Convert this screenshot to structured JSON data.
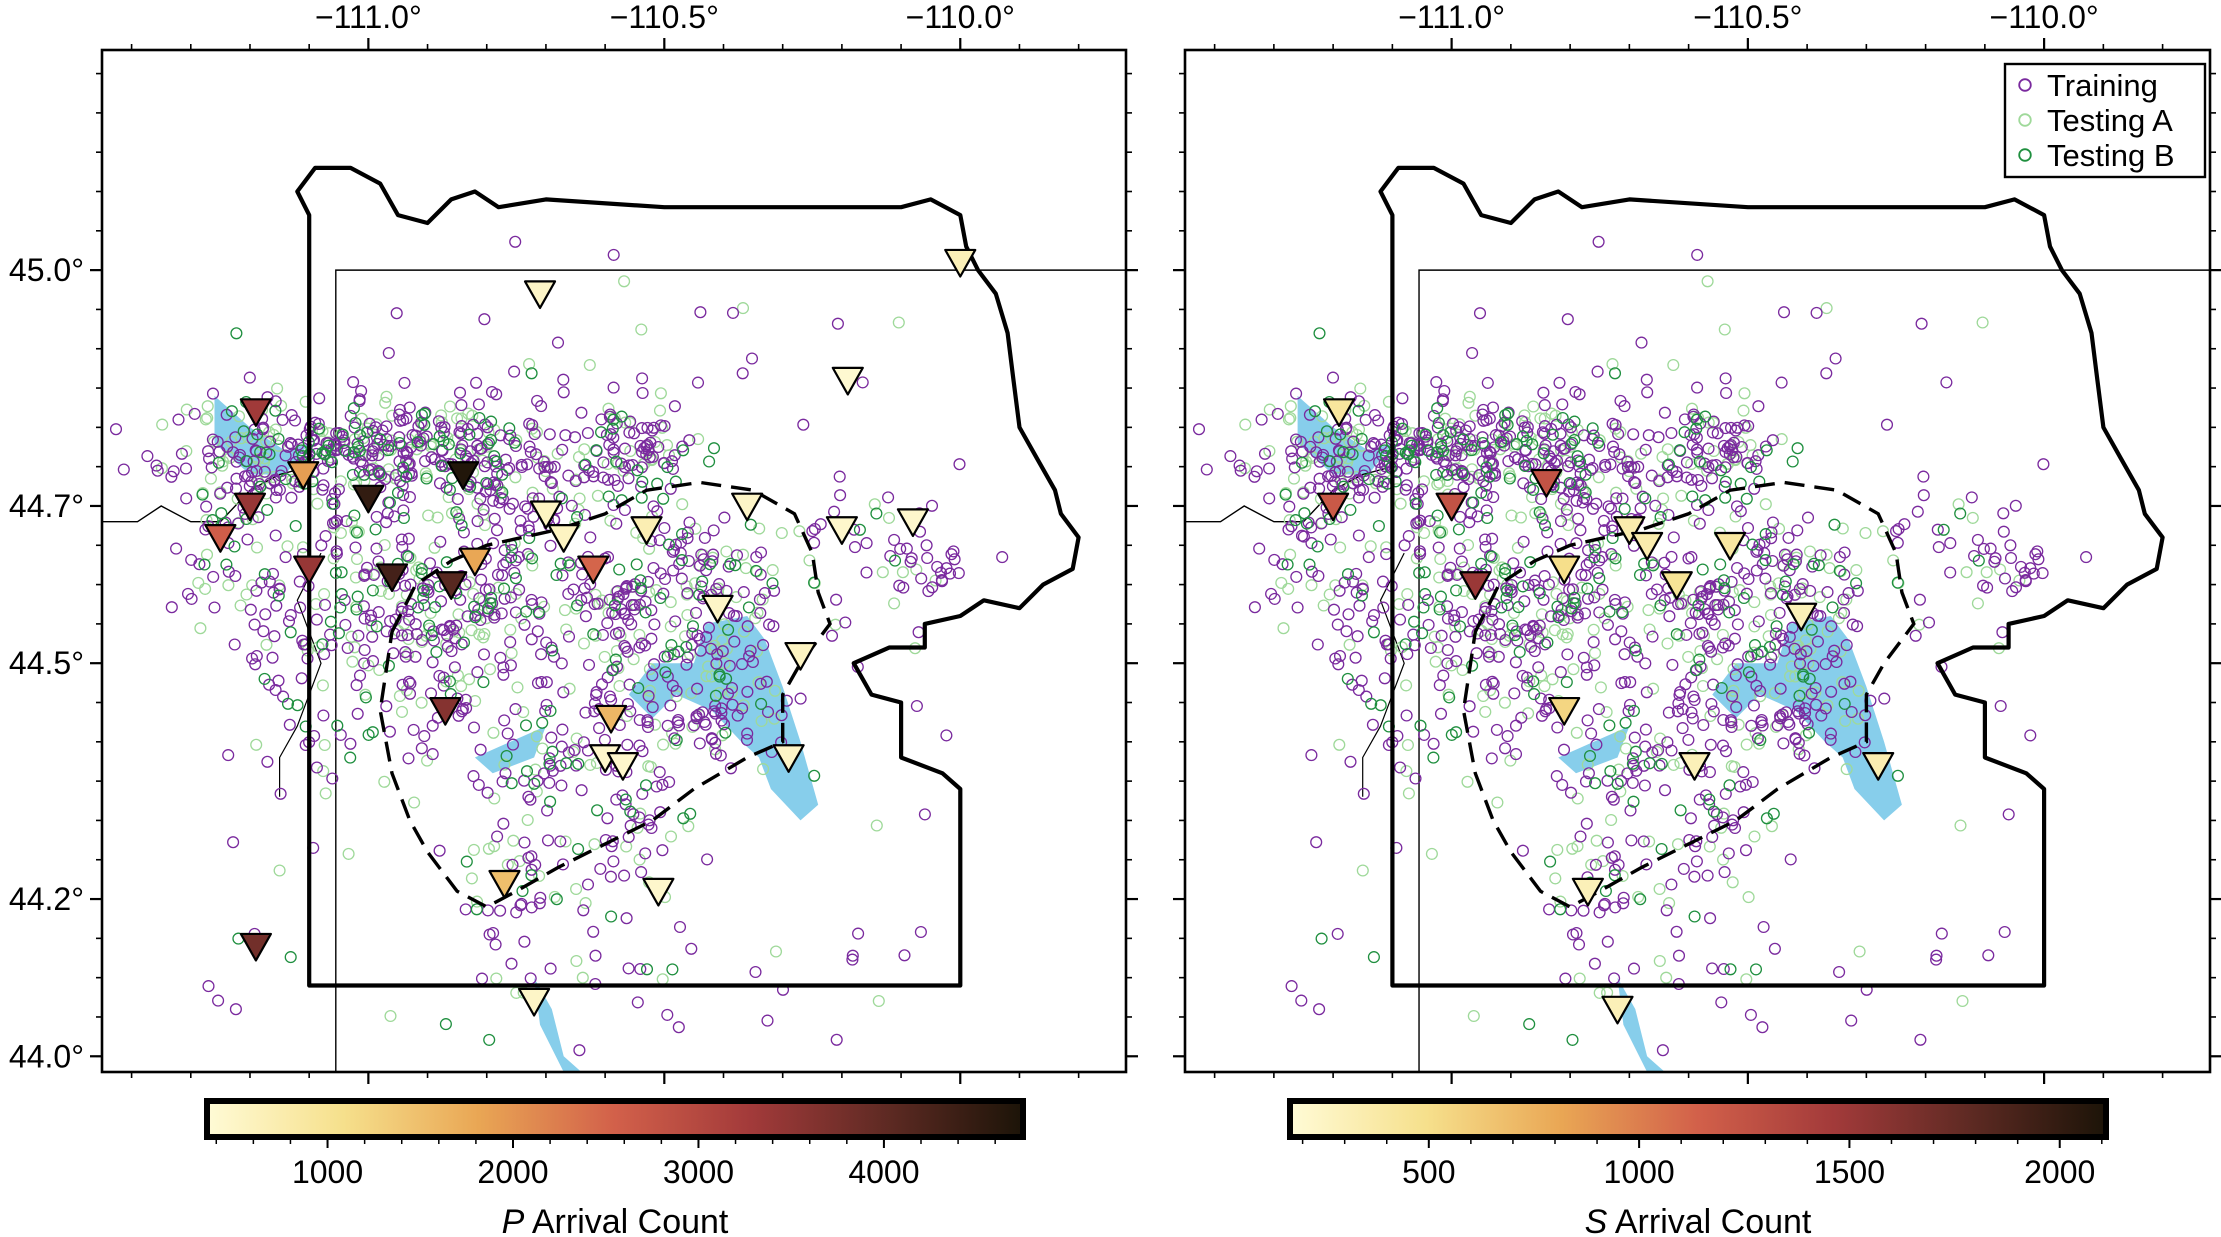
{
  "maps": [
    {
      "id": "p",
      "lon_ticks": [
        "−111.0°",
        "−110.5°",
        "−110.0°"
      ],
      "lat_ticks": [
        "45.0°",
        "44.7°",
        "44.5°",
        "44.2°",
        "44.0°"
      ],
      "colorbar": {
        "tick_labels": [
          "1000",
          "2000",
          "3000",
          "4000"
        ],
        "title_italic": "P",
        "title_rest": " Arrival Count",
        "range": [
          350,
          4750
        ]
      },
      "stations": [
        {
          "lon": -111.19,
          "lat": 44.82,
          "count": 3300
        },
        {
          "lon": -111.11,
          "lat": 44.74,
          "count": 1900
        },
        {
          "lon": -111.2,
          "lat": 44.7,
          "count": 3400
        },
        {
          "lon": -111.25,
          "lat": 44.66,
          "count": 2600
        },
        {
          "lon": -111.0,
          "lat": 44.71,
          "count": 4500
        },
        {
          "lon": -110.84,
          "lat": 44.74,
          "count": 4700
        },
        {
          "lon": -110.96,
          "lat": 44.61,
          "count": 4300
        },
        {
          "lon": -110.86,
          "lat": 44.6,
          "count": 4100
        },
        {
          "lon": -110.82,
          "lat": 44.63,
          "count": 1800
        },
        {
          "lon": -111.1,
          "lat": 44.62,
          "count": 3400
        },
        {
          "lon": -110.62,
          "lat": 44.62,
          "count": 2500
        },
        {
          "lon": -110.87,
          "lat": 44.44,
          "count": 3600
        },
        {
          "lon": -110.71,
          "lat": 44.97,
          "count": 500
        },
        {
          "lon": -110.7,
          "lat": 44.69,
          "count": 550
        },
        {
          "lon": -110.67,
          "lat": 44.66,
          "count": 550
        },
        {
          "lon": -110.53,
          "lat": 44.67,
          "count": 700
        },
        {
          "lon": -110.36,
          "lat": 44.7,
          "count": 500
        },
        {
          "lon": -110.19,
          "lat": 44.86,
          "count": 400
        },
        {
          "lon": -110.0,
          "lat": 45.01,
          "count": 650
        },
        {
          "lon": -110.08,
          "lat": 44.68,
          "count": 450
        },
        {
          "lon": -110.2,
          "lat": 44.67,
          "count": 450
        },
        {
          "lon": -110.41,
          "lat": 44.57,
          "count": 500
        },
        {
          "lon": -110.27,
          "lat": 44.51,
          "count": 550
        },
        {
          "lon": -110.29,
          "lat": 44.38,
          "count": 500
        },
        {
          "lon": -110.59,
          "lat": 44.43,
          "count": 1600
        },
        {
          "lon": -110.6,
          "lat": 44.38,
          "count": 450
        },
        {
          "lon": -110.57,
          "lat": 44.37,
          "count": 450
        },
        {
          "lon": -110.51,
          "lat": 44.21,
          "count": 450
        },
        {
          "lon": -110.77,
          "lat": 44.22,
          "count": 1500
        },
        {
          "lon": -111.19,
          "lat": 44.14,
          "count": 3800
        },
        {
          "lon": -110.72,
          "lat": 44.07,
          "count": 500
        }
      ]
    },
    {
      "id": "s",
      "lon_ticks": [
        "−111.0°",
        "−110.5°",
        "−110.0°"
      ],
      "lat_ticks": [],
      "colorbar": {
        "tick_labels": [
          "500",
          "1000",
          "1500",
          "2000"
        ],
        "title_italic": "S",
        "title_rest": " Arrival Count",
        "range": [
          170,
          2110
        ]
      },
      "stations": [
        {
          "lon": -111.19,
          "lat": 44.82,
          "count": 420
        },
        {
          "lon": -111.2,
          "lat": 44.7,
          "count": 1200
        },
        {
          "lon": -111.0,
          "lat": 44.7,
          "count": 1250
        },
        {
          "lon": -110.84,
          "lat": 44.73,
          "count": 1250
        },
        {
          "lon": -110.96,
          "lat": 44.6,
          "count": 1500
        },
        {
          "lon": -110.7,
          "lat": 44.67,
          "count": 350
        },
        {
          "lon": -110.67,
          "lat": 44.65,
          "count": 350
        },
        {
          "lon": -110.53,
          "lat": 44.65,
          "count": 400
        },
        {
          "lon": -110.81,
          "lat": 44.62,
          "count": 500
        },
        {
          "lon": -110.62,
          "lat": 44.6,
          "count": 450
        },
        {
          "lon": -110.41,
          "lat": 44.56,
          "count": 300
        },
        {
          "lon": -110.28,
          "lat": 44.37,
          "count": 330
        },
        {
          "lon": -110.81,
          "lat": 44.44,
          "count": 550
        },
        {
          "lon": -110.59,
          "lat": 44.37,
          "count": 300
        },
        {
          "lon": -110.77,
          "lat": 44.21,
          "count": 300
        },
        {
          "lon": -110.72,
          "lat": 44.06,
          "count": 300
        }
      ]
    }
  ],
  "legend": {
    "items": [
      {
        "label": "Training",
        "color": "#7a2a9e"
      },
      {
        "label": "Testing A",
        "color": "#9fd99a"
      },
      {
        "label": "Testing B",
        "color": "#1f8f3f"
      }
    ]
  },
  "colors": {
    "lake": "#87ceeb",
    "training": "#7a2a9e",
    "testing_a": "#9fd99a",
    "testing_b": "#1f8f3f",
    "colormap": [
      "#fffbd6",
      "#f6e08c",
      "#e9a654",
      "#d2604a",
      "#a23a3a",
      "#5e2a23",
      "#1c1408"
    ]
  },
  "extent": {
    "lon": [
      -111.45,
      -109.72
    ],
    "lat": [
      43.98,
      45.28
    ]
  }
}
